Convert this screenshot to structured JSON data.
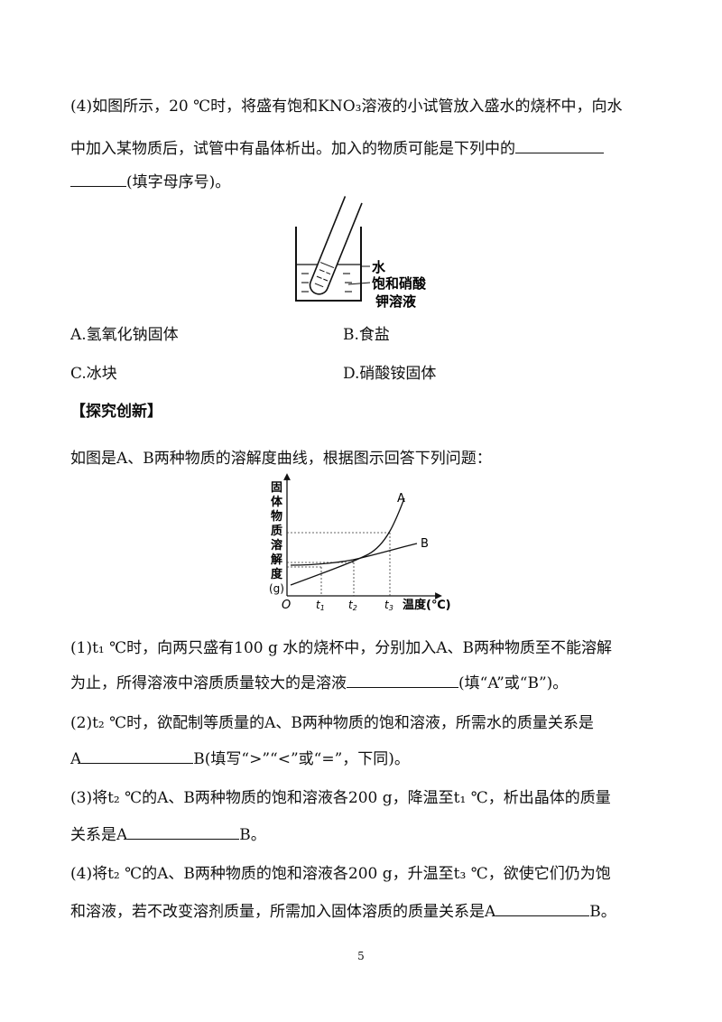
{
  "q4": {
    "line1": "(4)如图所示，20 ℃时，将盛有饱和KNO₃溶液的小试管放入盛水的烧杯中，向水",
    "line2": "中加入某物质后，试管中有晶体析出。加入的物质可能是下列中的",
    "line3_suffix": "(填字母序号)。",
    "figure_labels": {
      "water": "水",
      "solution_line1": "饱和硝酸",
      "solution_line2": "钾溶液"
    },
    "options": [
      {
        "label": "A.氢氧化钠固体"
      },
      {
        "label": "B.食盐"
      },
      {
        "label": "C.冰块"
      },
      {
        "label": "D.硝酸铵固体"
      }
    ]
  },
  "section_title": "【探究创新】",
  "intro": "如图是A、B两种物质的溶解度曲线，根据图示回答下列问题：",
  "graph": {
    "ylabel_chars": [
      "固",
      "体",
      "物",
      "质",
      "溶",
      "解",
      "度"
    ],
    "yunit": "(g)",
    "origin": "O",
    "xticks": [
      "t1",
      "t2",
      "t3"
    ],
    "xlabel": "温度(℃)",
    "curve_a": "A",
    "curve_b": "B"
  },
  "sub_questions": {
    "q1_line1": "(1)t₁ ℃时，向两只盛有100 g 水的烧杯中，分别加入A、B两种物质至不能溶解",
    "q1_line2": "为止，所得溶液中溶质质量较大的是溶液",
    "q1_suffix": "(填“A”或“B”)。",
    "q2_line1": "(2)t₂ ℃时，欲配制等质量的A、B两种物质的饱和溶液，所需水的质量关系是",
    "q2_prefix": "A",
    "q2_suffix": "B(填写“>”“<”或“=”，下同)。",
    "q3_line1": "(3)将t₂ ℃的A、B两种物质的饱和溶液各200 g，降温至t₁ ℃，析出晶体的质量",
    "q3_prefix": "关系是A",
    "q3_suffix": "B。",
    "q4_line1": "(4)将t₂ ℃的A、B两种物质的饱和溶液各200 g，升温至t₃ ℃，欲使它们仍为饱",
    "q4_prefix": "和溶液，若不改变溶剂质量，所需加入固体溶质的质量关系是A",
    "q4_suffix": "B。"
  },
  "page_number": "5"
}
